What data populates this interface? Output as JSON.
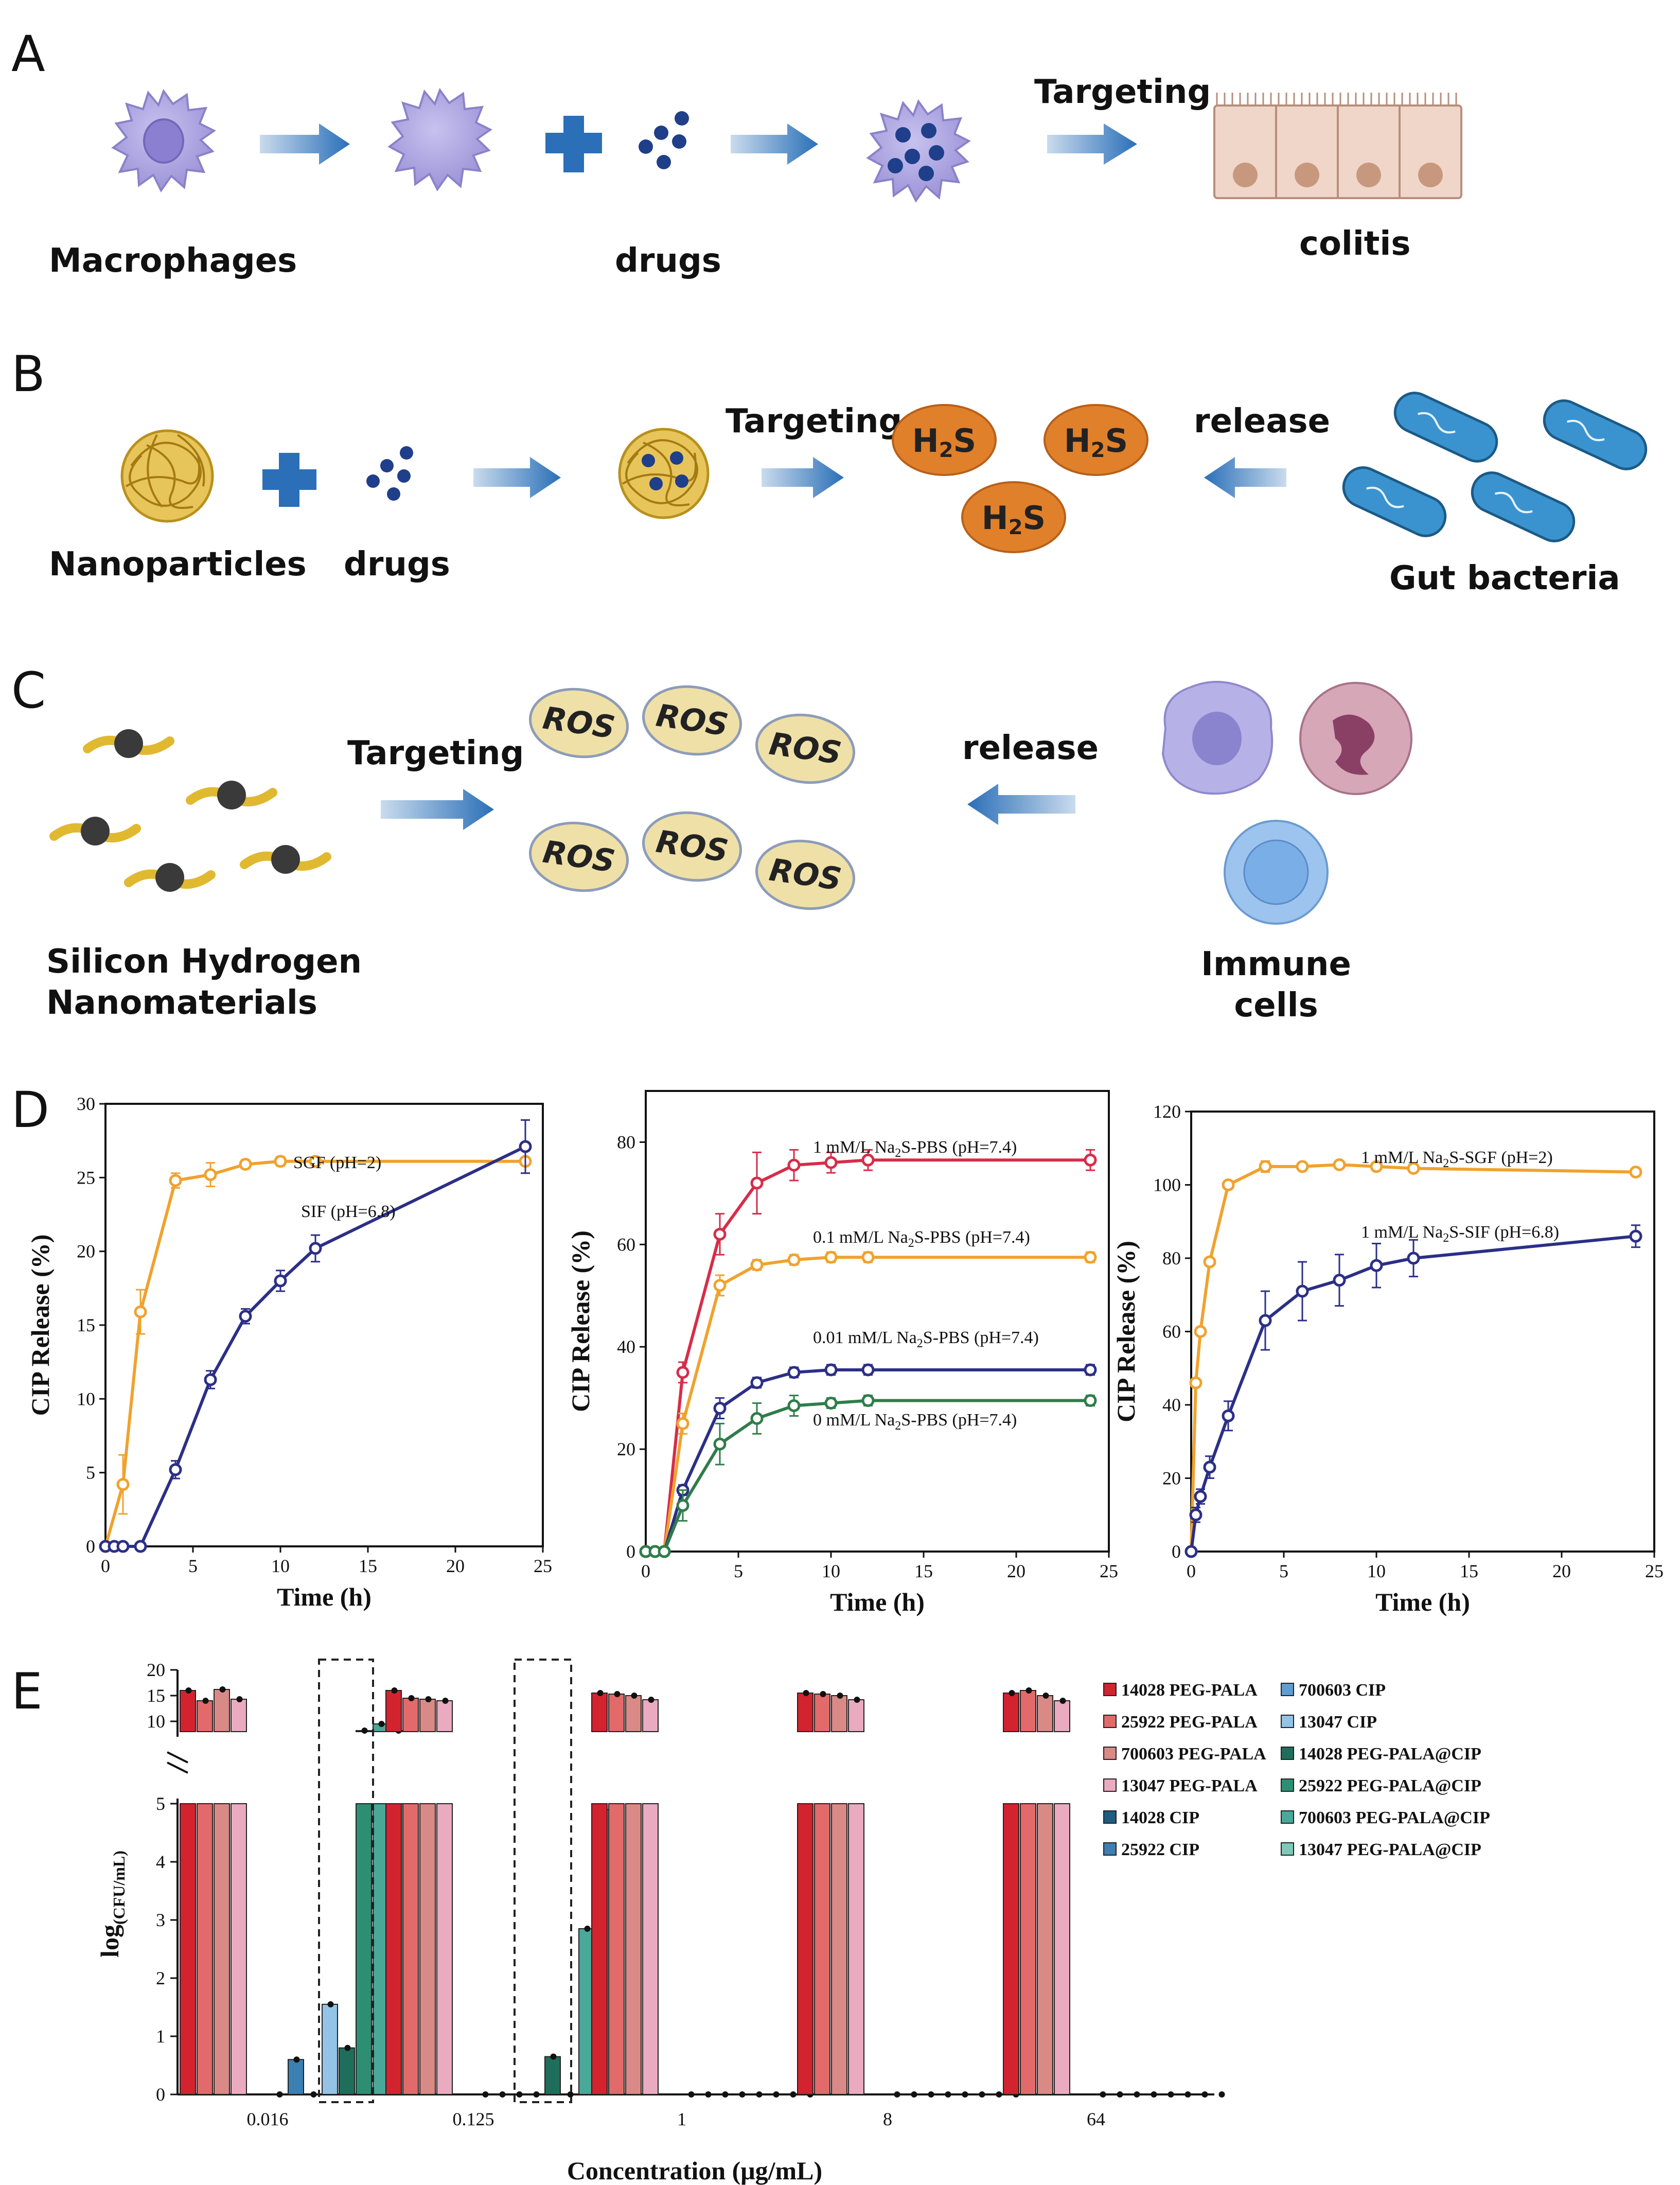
{
  "panel_a": {
    "letter": "A",
    "macrophages_label": "Macrophages",
    "drugs_label": "drugs",
    "targeting_label": "Targeting",
    "colitis_label": "colitis"
  },
  "panel_b": {
    "letter": "B",
    "nanoparticles_label": "Nanoparticles",
    "drugs_label": "drugs",
    "targeting_label": "Targeting",
    "release_label": "release",
    "gut_bacteria_label": "Gut bacteria",
    "h2s_main": "H",
    "h2s_sub": "2",
    "h2s_tail": "S"
  },
  "panel_c": {
    "letter": "C",
    "material_label_1": "Silicon Hydrogen",
    "material_label_2": "Nanomaterials",
    "targeting_label": "Targeting",
    "release_label": "release",
    "immune_label_1": "Immune",
    "immune_label_2": "cells",
    "ros_label": "ROS"
  },
  "panel_d_letter": "D",
  "panel_e_letter": "E",
  "colors": {
    "arrow": "#2a6fb8",
    "orange_series": "#f0a22e",
    "navy_series": "#2b2f86",
    "red_series": "#d62d4a",
    "green_series": "#2f7d4a",
    "h2s_fill": "#e0802a",
    "ros_fill": "#efe0a8"
  },
  "chart_data": [
    {
      "type": "line",
      "id": "D1",
      "xlabel": "Time (h)",
      "ylabel": "CIP Release (%)",
      "xlim": [
        0,
        25
      ],
      "ylim": [
        0,
        30
      ],
      "xticks": [
        0,
        5,
        10,
        15,
        20,
        25
      ],
      "yticks": [
        0,
        5,
        10,
        15,
        20,
        25,
        30
      ],
      "series": [
        {
          "name": "SGF (pH=2)",
          "color": "#f0a22e",
          "x": [
            0,
            1,
            2,
            4,
            6,
            8,
            10,
            12,
            24
          ],
          "y": [
            0,
            4.2,
            15.9,
            24.8,
            25.2,
            25.9,
            26.1,
            26.1,
            26.1
          ],
          "err": [
            0,
            2,
            1.5,
            0.5,
            0.8,
            0.3,
            0.3,
            0.2,
            0.8
          ]
        },
        {
          "name": "SIF (pH=6.8)",
          "color": "#2b2f86",
          "x": [
            0,
            0.5,
            1,
            2,
            4,
            6,
            8,
            10,
            12,
            24
          ],
          "y": [
            0,
            0,
            0,
            0,
            5.2,
            11.3,
            15.6,
            18,
            20.2,
            27.1
          ],
          "err": [
            0,
            0,
            0,
            0,
            0.6,
            0.6,
            0.5,
            0.7,
            0.9,
            1.8
          ]
        }
      ],
      "annotations": [
        "SGF (pH=2)",
        "SIF (pH=6.8)"
      ]
    },
    {
      "type": "line",
      "id": "D2",
      "xlabel": "Time (h)",
      "ylabel": "CIP Release (%)",
      "xlim": [
        0,
        25
      ],
      "ylim": [
        0,
        90
      ],
      "xticks": [
        0,
        5,
        10,
        15,
        20,
        25
      ],
      "yticks": [
        0,
        20,
        40,
        60,
        80
      ],
      "series": [
        {
          "name": "1 mM/L Na2S-PBS (pH=7.4)",
          "color": "#d62d4a",
          "x": [
            0,
            0.5,
            1,
            2,
            4,
            6,
            8,
            10,
            12,
            24
          ],
          "y": [
            0,
            0,
            0,
            35,
            62,
            72,
            75.5,
            76,
            76.5,
            76.5
          ],
          "err": [
            0,
            0,
            0,
            2,
            4,
            6,
            3,
            2,
            2,
            2
          ]
        },
        {
          "name": "0.1 mM/L Na2S-PBS (pH=7.4)",
          "color": "#f0a22e",
          "x": [
            0,
            0.5,
            1,
            2,
            4,
            6,
            8,
            10,
            12,
            24
          ],
          "y": [
            0,
            0,
            0,
            25,
            52,
            56,
            57,
            57.5,
            57.5,
            57.5
          ],
          "err": [
            0,
            0,
            0,
            2,
            2,
            1,
            1,
            1,
            1,
            1
          ]
        },
        {
          "name": "0.01 mM/L Na2S-PBS (pH=7.4)",
          "color": "#2b2f86",
          "x": [
            0,
            0.5,
            1,
            2,
            4,
            6,
            8,
            10,
            12,
            24
          ],
          "y": [
            0,
            0,
            0,
            12,
            28,
            33,
            35,
            35.5,
            35.5,
            35.5
          ],
          "err": [
            0,
            0,
            0,
            1,
            2,
            1,
            1,
            1,
            1,
            1
          ]
        },
        {
          "name": "0 mM/L Na2S-PBS (pH=7.4)",
          "color": "#2f7d4a",
          "x": [
            0,
            0.5,
            1,
            2,
            4,
            6,
            8,
            10,
            12,
            24
          ],
          "y": [
            0,
            0,
            0,
            9,
            21,
            26,
            28.5,
            29,
            29.5,
            29.5
          ],
          "err": [
            0,
            0,
            0,
            3,
            4,
            3,
            2,
            1,
            1,
            1
          ]
        }
      ],
      "annotations": [
        "1 mM/L Na",
        "2",
        "S-PBS (pH=7.4)",
        "0.1 mM/L Na",
        "0.01 mM/L Na",
        "0 mM/L Na"
      ]
    },
    {
      "type": "line",
      "id": "D3",
      "xlabel": "Time (h)",
      "ylabel": "CIP Release (%)",
      "xlim": [
        0,
        25
      ],
      "ylim": [
        0,
        120
      ],
      "xticks": [
        0,
        5,
        10,
        15,
        20,
        25
      ],
      "yticks": [
        0,
        20,
        40,
        60,
        80,
        100,
        120
      ],
      "series": [
        {
          "name": "1 mM/L Na2S-SGF (pH=2)",
          "color": "#f0a22e",
          "x": [
            0,
            0.25,
            0.5,
            1,
            2,
            4,
            6,
            8,
            10,
            12,
            24
          ],
          "y": [
            0,
            46,
            60,
            79,
            100,
            105,
            105,
            105.5,
            105,
            104.5,
            103.5
          ],
          "err": [
            0,
            1,
            1,
            1,
            1,
            1.5,
            1,
            1,
            1,
            1,
            1
          ]
        },
        {
          "name": "1 mM/L Na2S-SIF (pH=6.8)",
          "color": "#2b2f86",
          "x": [
            0,
            0.25,
            0.5,
            1,
            2,
            4,
            6,
            8,
            10,
            12,
            24
          ],
          "y": [
            0,
            10,
            15,
            23,
            37,
            63,
            71,
            74,
            78,
            80,
            86
          ],
          "err": [
            0,
            2,
            2,
            3,
            4,
            8,
            8,
            7,
            6,
            5,
            3
          ]
        }
      ],
      "annotations": [
        "1 mM/L Na",
        "2",
        "S-SGF (pH=2)",
        "1 mM/L Na",
        "S-SIF (pH=6.8)"
      ]
    },
    {
      "type": "bar",
      "id": "E",
      "xlabel": "Concentration (μg/mL)",
      "ylabel_main": "log",
      "ylabel_sub": "(CFU/mL)",
      "categories": [
        "0.016",
        "0.125",
        "1",
        "8",
        "64"
      ],
      "yticks_lower": [
        0,
        1,
        2,
        3,
        4,
        5
      ],
      "yticks_upper": [
        10,
        15,
        20
      ],
      "series": [
        {
          "name": "14028 PEG-PALA",
          "color": "#d3232f",
          "values": [
            16,
            16,
            15.5,
            15.5,
            15.5
          ]
        },
        {
          "name": "25922 PEG-PALA",
          "color": "#e36a6a",
          "values": [
            14,
            14.5,
            15.3,
            15.3,
            16
          ]
        },
        {
          "name": "700603 PEG-PALA",
          "color": "#d98a86",
          "values": [
            16.2,
            14.3,
            15,
            15,
            15
          ]
        },
        {
          "name": "13047 PEG-PALA",
          "color": "#eaaac0",
          "values": [
            14.3,
            14,
            14.2,
            14.2,
            14
          ]
        },
        {
          "name": "14028 CIP",
          "color": "#1e5d82",
          "values": [
            0,
            0,
            0,
            0,
            0
          ]
        },
        {
          "name": "25922 CIP",
          "color": "#3c7fb2",
          "values": [
            0.6,
            0,
            0,
            0,
            0
          ]
        },
        {
          "name": "700603 CIP",
          "color": "#5f9ccf",
          "values": [
            0,
            0,
            0,
            0,
            0
          ]
        },
        {
          "name": "13047 CIP",
          "color": "#93c3e6",
          "values": [
            1.55,
            0,
            0,
            0,
            0
          ]
        },
        {
          "name": "14028 PEG-PALA@CIP",
          "color": "#1f6e5c",
          "values": [
            0.8,
            0.65,
            0,
            0,
            0
          ]
        },
        {
          "name": "25922 PEG-PALA@CIP",
          "color": "#2e8e73",
          "values": [
            8.2,
            0,
            0,
            0,
            0
          ]
        },
        {
          "name": "700603 PEG-PALA@CIP",
          "color": "#4aa898",
          "values": [
            9.5,
            2.85,
            0,
            0,
            0
          ]
        },
        {
          "name": "13047 PEG-PALA@CIP",
          "color": "#7fc9b9",
          "values": [
            8.2,
            4.9,
            0,
            0,
            0
          ]
        }
      ]
    }
  ]
}
